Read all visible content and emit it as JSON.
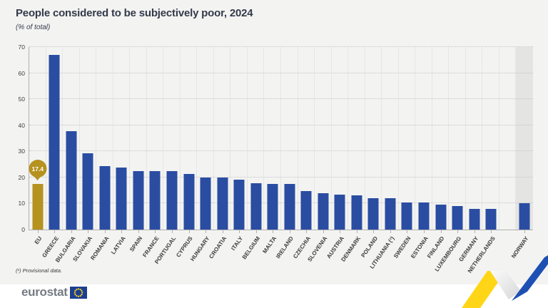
{
  "title": "People considered to be subjectively poor, 2024",
  "subtitle": "(% of total)",
  "footnote": "(¹) Provisional data.",
  "branding": {
    "logo_text": "eurostat",
    "flag_icon": "eu-flag-icon"
  },
  "colors": {
    "blue": "#2a4da2",
    "gold": "#b6921f",
    "norway_band": "#e4e4e3",
    "chart_background": "#f3f3f2",
    "title_text": "#333a4a",
    "decoration_yellow": "#ffd617",
    "decoration_blue": "#1d50b3"
  },
  "chart_data": {
    "type": "bar",
    "title": "People considered to be subjectively poor, 2024",
    "subtitle": "(% of total)",
    "xlabel": "",
    "ylabel": "% of total",
    "ylim": [
      0,
      70
    ],
    "yticks": [
      0,
      10,
      20,
      30,
      40,
      50,
      60,
      70
    ],
    "grid": "horizontal-dotted",
    "legend": "none",
    "annotations": [
      {
        "target": "EU",
        "text": "17.4",
        "style": "gold-circle-callout"
      }
    ],
    "bars": [
      {
        "label": "EU",
        "value": 17.4,
        "color": "gold",
        "value_labeled": true
      },
      {
        "label": "GREECE",
        "value": 67.0,
        "color": "blue"
      },
      {
        "label": "BULGARIA",
        "value": 37.7,
        "color": "blue"
      },
      {
        "label": "SLOVAKIA",
        "value": 29.3,
        "color": "blue"
      },
      {
        "label": "ROMANIA",
        "value": 24.3,
        "color": "blue"
      },
      {
        "label": "LATVIA",
        "value": 23.8,
        "color": "blue"
      },
      {
        "label": "SPAIN",
        "value": 22.5,
        "color": "blue"
      },
      {
        "label": "FRANCE",
        "value": 22.4,
        "color": "blue"
      },
      {
        "label": "PORTUGAL",
        "value": 22.3,
        "color": "blue"
      },
      {
        "label": "CYPRUS",
        "value": 21.2,
        "color": "blue"
      },
      {
        "label": "HUNGARY",
        "value": 20.1,
        "color": "blue"
      },
      {
        "label": "CROATIA",
        "value": 20.0,
        "color": "blue"
      },
      {
        "label": "ITALY",
        "value": 19.1,
        "color": "blue"
      },
      {
        "label": "BELGIUM",
        "value": 17.7,
        "color": "blue"
      },
      {
        "label": "MALTA",
        "value": 17.6,
        "color": "blue"
      },
      {
        "label": "IRELAND",
        "value": 17.5,
        "color": "blue"
      },
      {
        "label": "CZECHIA",
        "value": 14.7,
        "color": "blue"
      },
      {
        "label": "SLOVENIA",
        "value": 13.9,
        "color": "blue"
      },
      {
        "label": "AUSTRIA",
        "value": 13.4,
        "color": "blue"
      },
      {
        "label": "DENMARK",
        "value": 13.0,
        "color": "blue"
      },
      {
        "label": "POLAND",
        "value": 12.0,
        "color": "blue"
      },
      {
        "label": "LITHUANIA (¹)",
        "value": 11.9,
        "color": "blue"
      },
      {
        "label": "SWEDEN",
        "value": 10.4,
        "color": "blue"
      },
      {
        "label": "ESTONIA",
        "value": 10.3,
        "color": "blue"
      },
      {
        "label": "FINLAND",
        "value": 9.5,
        "color": "blue"
      },
      {
        "label": "LUXEMBOURG",
        "value": 9.1,
        "color": "blue"
      },
      {
        "label": "GERMANY",
        "value": 7.9,
        "color": "blue"
      },
      {
        "label": "NETHERLANDS",
        "value": 7.8,
        "color": "blue"
      },
      {
        "label": "NORWAY",
        "value": 10.2,
        "color": "blue",
        "separated": true,
        "background_band": true
      }
    ]
  }
}
